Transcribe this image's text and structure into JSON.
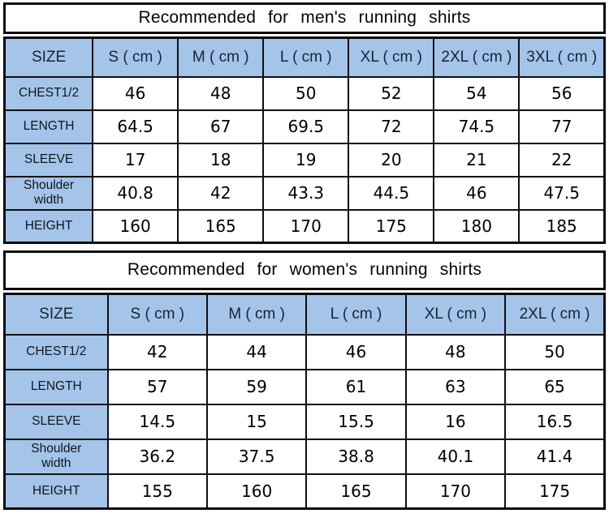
{
  "colors": {
    "header_blue": "#a4c4ea",
    "border_black": "#0a0a0a",
    "header_text": "#182433",
    "value_text": "#000000",
    "background": "#ffffff"
  },
  "chart_data": [
    {
      "type": "table",
      "title": "Recommended for men's running shirts",
      "columns": [
        "SIZE",
        "S ( cm )",
        "M ( cm )",
        "L ( cm )",
        "XL ( cm )",
        "2XL ( cm )",
        "3XL ( cm )"
      ],
      "rows": [
        {
          "label": "CHEST1/2",
          "values": [
            "46",
            "48",
            "50",
            "52",
            "54",
            "56"
          ]
        },
        {
          "label": "LENGTH",
          "values": [
            "64.5",
            "67",
            "69.5",
            "72",
            "74.5",
            "77"
          ]
        },
        {
          "label": "SLEEVE",
          "values": [
            "17",
            "18",
            "19",
            "20",
            "21",
            "22"
          ]
        },
        {
          "label": "Shoulder width",
          "values": [
            "40.8",
            "42",
            "43.3",
            "44.5",
            "46",
            "47.5"
          ]
        },
        {
          "label": "HEIGHT",
          "values": [
            "160",
            "165",
            "170",
            "175",
            "180",
            "185"
          ]
        }
      ]
    },
    {
      "type": "table",
      "title": "Recommended for women's running shirts",
      "columns": [
        "SIZE",
        "S ( cm )",
        "M ( cm )",
        "L ( cm )",
        "XL ( cm )",
        "2XL ( cm )"
      ],
      "rows": [
        {
          "label": "CHEST1/2",
          "values": [
            "42",
            "44",
            "46",
            "48",
            "50"
          ]
        },
        {
          "label": "LENGTH",
          "values": [
            "57",
            "59",
            "61",
            "63",
            "65"
          ]
        },
        {
          "label": "SLEEVE",
          "values": [
            "14.5",
            "15",
            "15.5",
            "16",
            "16.5"
          ]
        },
        {
          "label": "Shoulder width",
          "values": [
            "36.2",
            "37.5",
            "38.8",
            "40.1",
            "41.4"
          ]
        },
        {
          "label": "HEIGHT",
          "values": [
            "155",
            "160",
            "165",
            "170",
            "175"
          ]
        }
      ]
    }
  ]
}
